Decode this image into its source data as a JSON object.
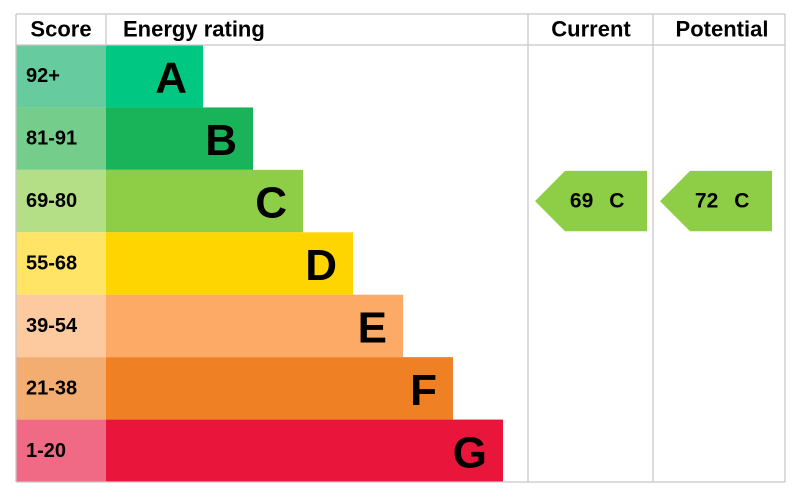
{
  "header": {
    "score": "Score",
    "energy_rating": "Energy rating",
    "current": "Current",
    "potential": "Potential"
  },
  "bands": [
    {
      "score": "92+",
      "letter": "A",
      "color": "#00c781",
      "score_color": "#66cca0"
    },
    {
      "score": "81-91",
      "letter": "B",
      "color": "#19b459",
      "score_color": "#75cd8b"
    },
    {
      "score": "69-80",
      "letter": "C",
      "color": "#8dce46",
      "score_color": "#b4df86"
    },
    {
      "score": "55-68",
      "letter": "D",
      "color": "#ffd500",
      "score_color": "#ffe466"
    },
    {
      "score": "39-54",
      "letter": "E",
      "color": "#fcaa65",
      "score_color": "#fdcaa0"
    },
    {
      "score": "21-38",
      "letter": "F",
      "color": "#ef8023",
      "score_color": "#f4ad70"
    },
    {
      "score": "1-20",
      "letter": "G",
      "color": "#e9153b",
      "score_color": "#f06a85"
    }
  ],
  "current": {
    "value": 69,
    "letter": "C"
  },
  "potential": {
    "value": 72,
    "letter": "C"
  }
}
